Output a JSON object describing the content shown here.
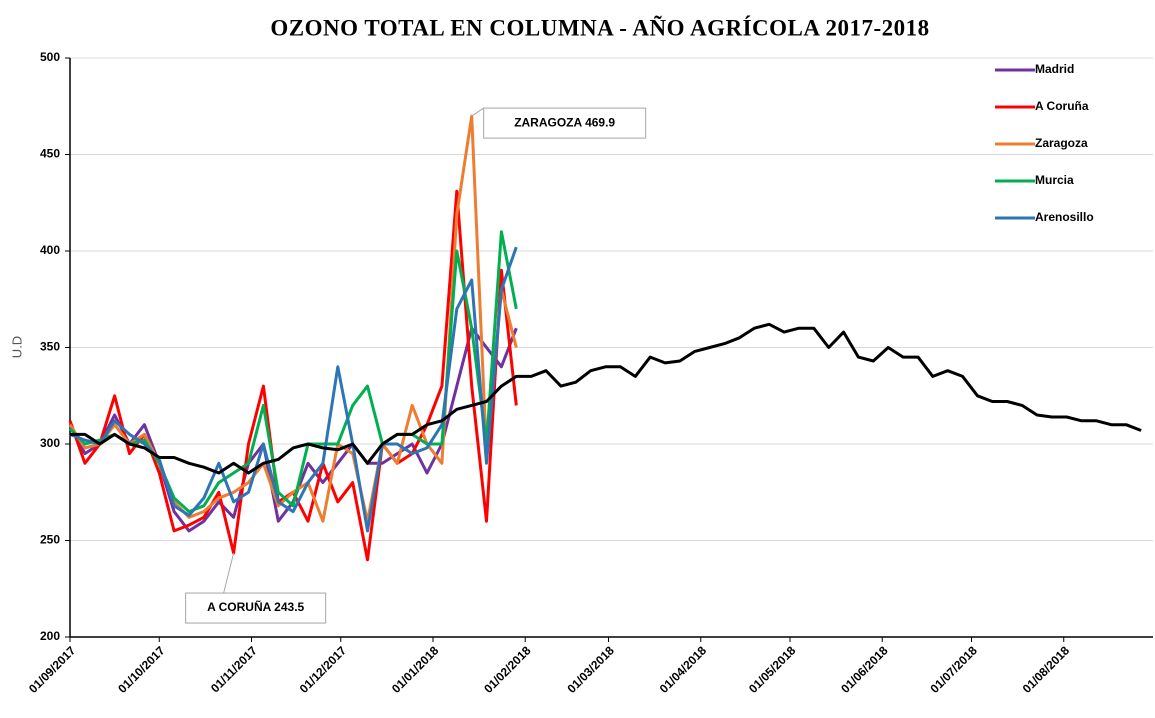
{
  "chart_data": {
    "type": "line",
    "title": "OZONO TOTAL EN COLUMNA - AÑO AGRÍCOLA 2017-2018",
    "y_label": "U.D",
    "x": [
      "01/09/2017",
      "06/09/2017",
      "11/09/2017",
      "16/09/2017",
      "21/09/2017",
      "26/09/2017",
      "01/10/2017",
      "06/10/2017",
      "11/10/2017",
      "16/10/2017",
      "21/10/2017",
      "26/10/2017",
      "31/10/2017",
      "05/11/2017",
      "10/11/2017",
      "15/11/2017",
      "20/11/2017",
      "25/11/2017",
      "30/11/2017",
      "05/12/2017",
      "10/12/2017",
      "15/12/2017",
      "20/12/2017",
      "25/12/2017",
      "30/12/2017",
      "04/01/2018",
      "09/01/2018",
      "14/01/2018",
      "19/01/2018",
      "24/01/2018",
      "29/01/2018",
      "03/02/2018",
      "08/02/2018",
      "13/02/2018",
      "18/02/2018",
      "23/02/2018",
      "28/02/2018",
      "05/03/2018",
      "10/03/2018",
      "15/03/2018",
      "20/03/2018",
      "25/03/2018",
      "30/03/2018",
      "04/04/2018",
      "09/04/2018",
      "14/04/2018",
      "19/04/2018",
      "24/04/2018",
      "29/04/2018",
      "04/05/2018",
      "09/05/2018",
      "14/05/2018",
      "19/05/2018",
      "24/05/2018",
      "29/05/2018",
      "03/06/2018",
      "08/06/2018",
      "13/06/2018",
      "18/06/2018",
      "23/06/2018",
      "28/06/2018",
      "03/07/2018",
      "08/07/2018",
      "13/07/2018",
      "18/07/2018",
      "23/07/2018",
      "28/07/2018",
      "02/08/2018",
      "07/08/2018",
      "12/08/2018",
      "17/08/2018",
      "22/08/2018",
      "27/08/2018"
    ],
    "series": [
      {
        "color": "#000000",
        "values": [
          305,
          305,
          300,
          305,
          300,
          298,
          293,
          293,
          290,
          288,
          285,
          290,
          285,
          290,
          292,
          298,
          300,
          298,
          297,
          300,
          290,
          300,
          305,
          305,
          310,
          312,
          318,
          320,
          322,
          330,
          335,
          335,
          338,
          330,
          332,
          338,
          340,
          340,
          335,
          345,
          342,
          343,
          348,
          350,
          352,
          355,
          360,
          362,
          358,
          360,
          360,
          350,
          358,
          345,
          343,
          350,
          345,
          345,
          335,
          338,
          335,
          325,
          322,
          322,
          320,
          315,
          314,
          314,
          312,
          312,
          310,
          310,
          307
        ]
      },
      {
        "name": "Madrid",
        "color": "#7030a0",
        "values": [
          310,
          295,
          300,
          315,
          300,
          310,
          290,
          265,
          255,
          260,
          270,
          262,
          290,
          300,
          260,
          270,
          290,
          280,
          290,
          300,
          290,
          290,
          295,
          300,
          285,
          300,
          330,
          360,
          350,
          340,
          360,
          null,
          null,
          null,
          null,
          null,
          null,
          null,
          null,
          null,
          null,
          null,
          null,
          null,
          null,
          null,
          null,
          null,
          null,
          null,
          null,
          null,
          null,
          null,
          null,
          null,
          null,
          null,
          null,
          null,
          null,
          null,
          null,
          null,
          null,
          null,
          null,
          null,
          null,
          null,
          null,
          null,
          null
        ]
      },
      {
        "name": "A Coruña",
        "color": "#ff0000",
        "values": [
          312,
          290,
          300,
          325,
          295,
          305,
          285,
          255,
          258,
          262,
          275,
          243.5,
          300,
          330,
          270,
          275,
          260,
          290,
          270,
          280,
          240,
          300,
          290,
          295,
          310,
          330,
          431,
          330,
          260,
          390,
          320,
          null,
          null,
          null,
          null,
          null,
          null,
          null,
          null,
          null,
          null,
          null,
          null,
          null,
          null,
          null,
          null,
          null,
          null,
          null,
          null,
          null,
          null,
          null,
          null,
          null,
          null,
          null,
          null,
          null,
          null,
          null,
          null,
          null,
          null,
          null,
          null,
          null,
          null,
          null,
          null,
          null,
          null
        ]
      },
      {
        "name": "Zaragoza",
        "color": "#ed7d31",
        "values": [
          310,
          298,
          300,
          310,
          300,
          305,
          290,
          270,
          262,
          265,
          272,
          275,
          280,
          290,
          268,
          275,
          280,
          260,
          300,
          295,
          260,
          300,
          290,
          320,
          300,
          290,
          419,
          469.9,
          295,
          380,
          350,
          null,
          null,
          null,
          null,
          null,
          null,
          null,
          null,
          null,
          null,
          null,
          null,
          null,
          null,
          null,
          null,
          null,
          null,
          null,
          null,
          null,
          null,
          null,
          null,
          null,
          null,
          null,
          null,
          null,
          null,
          null,
          null,
          null,
          null,
          null,
          null,
          null,
          null,
          null,
          null,
          null,
          null
        ]
      },
      {
        "name": "Murcia",
        "color": "#00b050",
        "values": [
          308,
          300,
          302,
          305,
          300,
          302,
          290,
          272,
          265,
          268,
          280,
          285,
          290,
          320,
          275,
          268,
          300,
          300,
          300,
          320,
          330,
          300,
          305,
          305,
          300,
          300,
          400,
          360,
          300,
          410,
          370,
          null,
          null,
          null,
          null,
          null,
          null,
          null,
          null,
          null,
          null,
          null,
          null,
          null,
          null,
          null,
          null,
          null,
          null,
          null,
          null,
          null,
          null,
          null,
          null,
          null,
          null,
          null,
          null,
          null,
          null,
          null,
          null,
          null,
          null,
          null,
          null,
          null,
          null,
          null,
          null,
          null,
          null
        ]
      },
      {
        "name": "Arenosillo",
        "color": "#2e75b6",
        "values": [
          305,
          302,
          300,
          312,
          305,
          300,
          292,
          268,
          263,
          272,
          290,
          270,
          275,
          300,
          270,
          265,
          280,
          290,
          340,
          300,
          255,
          300,
          300,
          295,
          298,
          310,
          370,
          385,
          290,
          380,
          402,
          null,
          null,
          null,
          null,
          null,
          null,
          null,
          null,
          null,
          null,
          null,
          null,
          null,
          null,
          null,
          null,
          null,
          null,
          null,
          null,
          null,
          null,
          null,
          null,
          null,
          null,
          null,
          null,
          null,
          null,
          null,
          null,
          null,
          null,
          null,
          null,
          null,
          null,
          null,
          null,
          null,
          null
        ]
      }
    ],
    "xlim": [
      "01/09/2017",
      "31/08/2018"
    ],
    "xticks": [
      "01/09/2017",
      "01/10/2017",
      "01/11/2017",
      "01/12/2017",
      "01/01/2018",
      "01/02/2018",
      "01/03/2018",
      "01/04/2018",
      "01/05/2018",
      "01/06/2018",
      "01/07/2018",
      "01/08/2018"
    ],
    "ylim": [
      200,
      500
    ],
    "yticks": [
      200,
      250,
      300,
      350,
      400,
      450,
      500
    ],
    "grid": true,
    "legend": "top-right",
    "annotations": [
      {
        "label": "ZARAGOZA 469.9",
        "x": "14/01/2018",
        "value": 469.9
      },
      {
        "label": "A CORUÑA 243.5",
        "x": "26/10/2017",
        "value": 243.5
      }
    ]
  }
}
